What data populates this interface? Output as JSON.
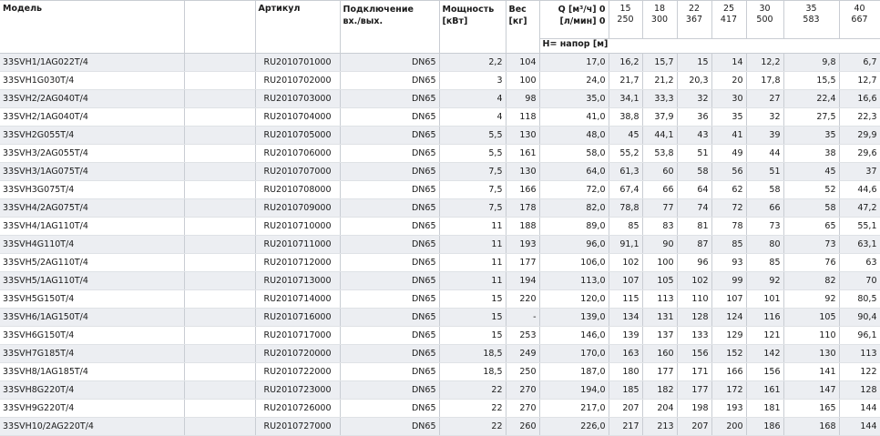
{
  "table": {
    "header": {
      "model": "Модель",
      "article": "Артикул",
      "connection": [
        "Подключение",
        "вх./вых."
      ],
      "power": [
        "Мощность",
        "[кВт]"
      ],
      "weight": [
        "Вес",
        "[кг]"
      ],
      "flow_label": [
        "Q [м³/ч] 0",
        "[л/мин] 0"
      ],
      "flow_points": [
        [
          "15",
          "250"
        ],
        [
          "18",
          "300"
        ],
        [
          "22",
          "367"
        ],
        [
          "25",
          "417"
        ],
        [
          "30",
          "500"
        ],
        [
          "35",
          "583"
        ],
        [
          "40",
          "667"
        ]
      ],
      "head_label": "H= напор [м]"
    },
    "rows": [
      [
        "33SVH1/1AG022T/4",
        "RU2010701000",
        "DN65",
        "2,2",
        "104",
        "17,0",
        "16,2",
        "15,7",
        "15",
        "14",
        "12,2",
        "9,8",
        "6,7"
      ],
      [
        "33SVH1G030T/4",
        "RU2010702000",
        "DN65",
        "3",
        "100",
        "24,0",
        "21,7",
        "21,2",
        "20,3",
        "20",
        "17,8",
        "15,5",
        "12,7"
      ],
      [
        "33SVH2/2AG040T/4",
        "RU2010703000",
        "DN65",
        "4",
        "98",
        "35,0",
        "34,1",
        "33,3",
        "32",
        "30",
        "27",
        "22,4",
        "16,6"
      ],
      [
        "33SVH2/1AG040T/4",
        "RU2010704000",
        "DN65",
        "4",
        "118",
        "41,0",
        "38,8",
        "37,9",
        "36",
        "35",
        "32",
        "27,5",
        "22,3"
      ],
      [
        "33SVH2G055T/4",
        "RU2010705000",
        "DN65",
        "5,5",
        "130",
        "48,0",
        "45",
        "44,1",
        "43",
        "41",
        "39",
        "35",
        "29,9"
      ],
      [
        "33SVH3/2AG055T/4",
        "RU2010706000",
        "DN65",
        "5,5",
        "161",
        "58,0",
        "55,2",
        "53,8",
        "51",
        "49",
        "44",
        "38",
        "29,6"
      ],
      [
        "33SVH3/1AG075T/4",
        "RU2010707000",
        "DN65",
        "7,5",
        "130",
        "64,0",
        "61,3",
        "60",
        "58",
        "56",
        "51",
        "45",
        "37"
      ],
      [
        "33SVH3G075T/4",
        "RU2010708000",
        "DN65",
        "7,5",
        "166",
        "72,0",
        "67,4",
        "66",
        "64",
        "62",
        "58",
        "52",
        "44,6"
      ],
      [
        "33SVH4/2AG075T/4",
        "RU2010709000",
        "DN65",
        "7,5",
        "178",
        "82,0",
        "78,8",
        "77",
        "74",
        "72",
        "66",
        "58",
        "47,2"
      ],
      [
        "33SVH4/1AG110T/4",
        "RU2010710000",
        "DN65",
        "11",
        "188",
        "89,0",
        "85",
        "83",
        "81",
        "78",
        "73",
        "65",
        "55,1"
      ],
      [
        "33SVH4G110T/4",
        "RU2010711000",
        "DN65",
        "11",
        "193",
        "96,0",
        "91,1",
        "90",
        "87",
        "85",
        "80",
        "73",
        "63,1"
      ],
      [
        "33SVH5/2AG110T/4",
        "RU2010712000",
        "DN65",
        "11",
        "177",
        "106,0",
        "102",
        "100",
        "96",
        "93",
        "85",
        "76",
        "63"
      ],
      [
        "33SVH5/1AG110T/4",
        "RU2010713000",
        "DN65",
        "11",
        "194",
        "113,0",
        "107",
        "105",
        "102",
        "99",
        "92",
        "82",
        "70"
      ],
      [
        "33SVH5G150T/4",
        "RU2010714000",
        "DN65",
        "15",
        "220",
        "120,0",
        "115",
        "113",
        "110",
        "107",
        "101",
        "92",
        "80,5"
      ],
      [
        "33SVH6/1AG150T/4",
        "RU2010716000",
        "DN65",
        "15",
        "-",
        "139,0",
        "134",
        "131",
        "128",
        "124",
        "116",
        "105",
        "90,4"
      ],
      [
        "33SVH6G150T/4",
        "RU2010717000",
        "DN65",
        "15",
        "253",
        "146,0",
        "139",
        "137",
        "133",
        "129",
        "121",
        "110",
        "96,1"
      ],
      [
        "33SVH7G185T/4",
        "RU2010720000",
        "DN65",
        "18,5",
        "249",
        "170,0",
        "163",
        "160",
        "156",
        "152",
        "142",
        "130",
        "113"
      ],
      [
        "33SVH8/1AG185T/4",
        "RU2010722000",
        "DN65",
        "18,5",
        "250",
        "187,0",
        "180",
        "177",
        "171",
        "166",
        "156",
        "141",
        "122"
      ],
      [
        "33SVH8G220T/4",
        "RU2010723000",
        "DN65",
        "22",
        "270",
        "194,0",
        "185",
        "182",
        "177",
        "172",
        "161",
        "147",
        "128"
      ],
      [
        "33SVH9G220T/4",
        "RU2010726000",
        "DN65",
        "22",
        "270",
        "217,0",
        "207",
        "204",
        "198",
        "193",
        "181",
        "165",
        "144"
      ],
      [
        "33SVH10/2AG220T/4",
        "RU2010727000",
        "DN65",
        "22",
        "260",
        "226,0",
        "217",
        "213",
        "207",
        "200",
        "186",
        "168",
        "144"
      ]
    ]
  }
}
